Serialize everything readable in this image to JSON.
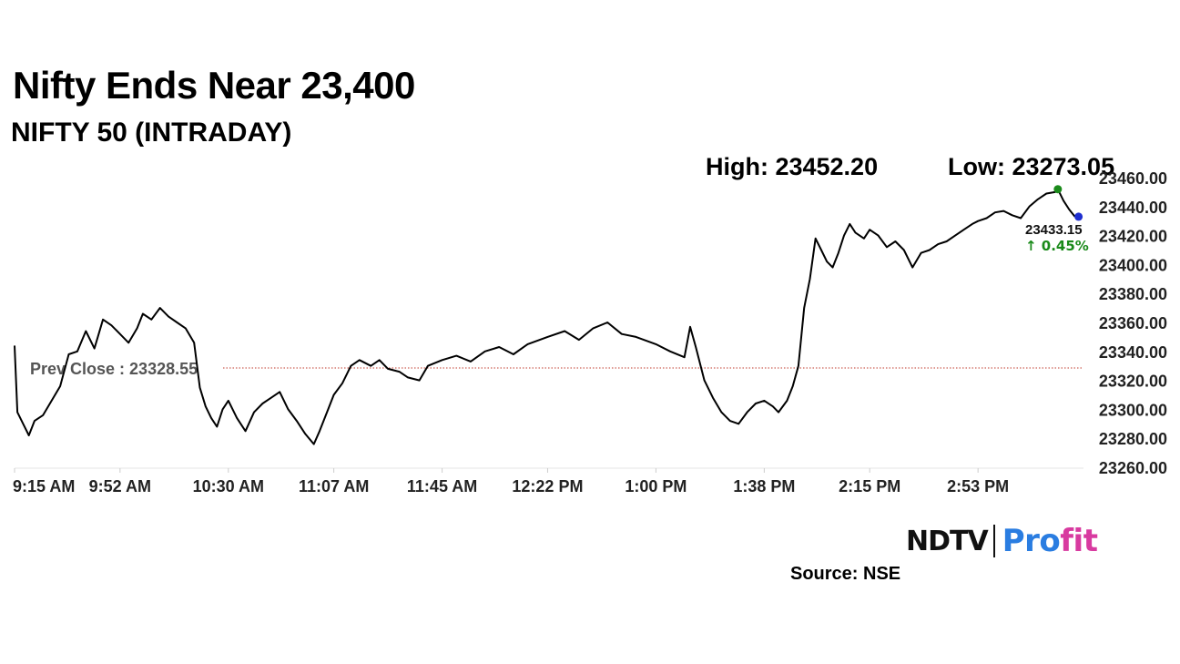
{
  "header": {
    "title": "Nifty Ends Near 23,400",
    "subtitle": "NIFTY 50 (INTRADAY)",
    "high_text": "High: 23452.20",
    "low_text": "Low: 23273.05"
  },
  "footer": {
    "brand_left": "NDTV",
    "brand_right_a": "Pro",
    "brand_right_b": "fit",
    "source": "Source: NSE"
  },
  "chart_data": {
    "type": "line",
    "title": "NIFTY 50 (INTRADAY)",
    "xlabel": "",
    "ylabel": "",
    "x_tick_labels": [
      "9:15 AM",
      "9:52 AM",
      "10:30 AM",
      "11:07 AM",
      "11:45 AM",
      "12:22 PM",
      "1:00 PM",
      "1:38 PM",
      "2:15 PM",
      "2:53 PM"
    ],
    "y_tick_labels": [
      "23260.00",
      "23280.00",
      "23300.00",
      "23320.00",
      "23340.00",
      "23360.00",
      "23380.00",
      "23400.00",
      "23420.00",
      "23440.00",
      "23460.00"
    ],
    "ylim": [
      23260,
      23460
    ],
    "xlim_minutes": [
      0,
      375
    ],
    "grid": false,
    "prev_close": 23328.55,
    "prev_close_label": "Prev Close : 23328.55",
    "high": 23452.2,
    "low": 23273.05,
    "last": 23433.15,
    "last_label": "23433.15",
    "change_label": "↑ 0.45%",
    "colors": {
      "line": "#000000",
      "prev_close": "#c0392b",
      "high_marker": "#1a8a1a",
      "low_marker": "#e02020",
      "last_marker": "#1f2fd0",
      "change": "#1a8a1a"
    },
    "series": [
      {
        "points": [
          [
            "9:15 AM",
            23344
          ],
          [
            "9:16 AM",
            23298
          ],
          [
            "9:18 AM",
            23290
          ],
          [
            "9:20 AM",
            23282
          ],
          [
            "9:22 AM",
            23292
          ],
          [
            "9:25 AM",
            23296
          ],
          [
            "9:28 AM",
            23306
          ],
          [
            "9:31 AM",
            23316
          ],
          [
            "9:34 AM",
            23338
          ],
          [
            "9:37 AM",
            23340
          ],
          [
            "9:40 AM",
            23354
          ],
          [
            "9:43 AM",
            23342
          ],
          [
            "9:46 AM",
            23362
          ],
          [
            "9:49 AM",
            23358
          ],
          [
            "9:52 AM",
            23352
          ],
          [
            "9:55 AM",
            23346
          ],
          [
            "9:58 AM",
            23356
          ],
          [
            "10:00 AM",
            23366
          ],
          [
            "10:03 AM",
            23362
          ],
          [
            "10:06 AM",
            23370
          ],
          [
            "10:09 AM",
            23364
          ],
          [
            "10:12 AM",
            23360
          ],
          [
            "10:15 AM",
            23356
          ],
          [
            "10:18 AM",
            23346
          ],
          [
            "10:20 AM",
            23315
          ],
          [
            "10:22 AM",
            23302
          ],
          [
            "10:24 AM",
            23294
          ],
          [
            "10:26 AM",
            23288
          ],
          [
            "10:28 AM",
            23300
          ],
          [
            "10:30 AM",
            23306
          ],
          [
            "10:33 AM",
            23294
          ],
          [
            "10:36 AM",
            23285
          ],
          [
            "10:39 AM",
            23298
          ],
          [
            "10:42 AM",
            23304
          ],
          [
            "10:45 AM",
            23308
          ],
          [
            "10:48 AM",
            23312
          ],
          [
            "10:51 AM",
            23300
          ],
          [
            "10:54 AM",
            23292
          ],
          [
            "10:57 AM",
            23283
          ],
          [
            "11:00 AM",
            23276
          ],
          [
            "11:02 AM",
            23285
          ],
          [
            "11:05 AM",
            23300
          ],
          [
            "11:07 AM",
            23310
          ],
          [
            "11:10 AM",
            23318
          ],
          [
            "11:13 AM",
            23330
          ],
          [
            "11:16 AM",
            23334
          ],
          [
            "11:20 AM",
            23330
          ],
          [
            "11:23 AM",
            23334
          ],
          [
            "11:26 AM",
            23328
          ],
          [
            "11:30 AM",
            23326
          ],
          [
            "11:33 AM",
            23322
          ],
          [
            "11:37 AM",
            23320
          ],
          [
            "11:40 AM",
            23330
          ],
          [
            "11:45 AM",
            23334
          ],
          [
            "11:50 AM",
            23337
          ],
          [
            "11:55 AM",
            23333
          ],
          [
            "12:00 PM",
            23340
          ],
          [
            "12:05 PM",
            23343
          ],
          [
            "12:10 PM",
            23338
          ],
          [
            "12:15 PM",
            23345
          ],
          [
            "12:22 PM",
            23350
          ],
          [
            "12:28 PM",
            23354
          ],
          [
            "12:33 PM",
            23348
          ],
          [
            "12:38 PM",
            23356
          ],
          [
            "12:43 PM",
            23360
          ],
          [
            "12:48 PM",
            23352
          ],
          [
            "12:53 PM",
            23350
          ],
          [
            "1:00 PM",
            23345
          ],
          [
            "1:05 PM",
            23340
          ],
          [
            "1:10 PM",
            23336
          ],
          [
            "1:12 PM",
            23357
          ],
          [
            "1:14 PM",
            23343
          ],
          [
            "1:17 PM",
            23320
          ],
          [
            "1:20 PM",
            23308
          ],
          [
            "1:23 PM",
            23298
          ],
          [
            "1:26 PM",
            23292
          ],
          [
            "1:29 PM",
            23290
          ],
          [
            "1:32 PM",
            23298
          ],
          [
            "1:35 PM",
            23304
          ],
          [
            "1:38 PM",
            23306
          ],
          [
            "1:41 PM",
            23302
          ],
          [
            "1:43 PM",
            23298
          ],
          [
            "1:46 PM",
            23306
          ],
          [
            "1:48 PM",
            23316
          ],
          [
            "1:50 PM",
            23330
          ],
          [
            "1:52 PM",
            23370
          ],
          [
            "1:54 PM",
            23390
          ],
          [
            "1:56 PM",
            23418
          ],
          [
            "1:58 PM",
            23410
          ],
          [
            "2:00 PM",
            23402
          ],
          [
            "2:02 PM",
            23398
          ],
          [
            "2:04 PM",
            23408
          ],
          [
            "2:06 PM",
            23420
          ],
          [
            "2:08 PM",
            23428
          ],
          [
            "2:10 PM",
            23422
          ],
          [
            "2:13 PM",
            23418
          ],
          [
            "2:15 PM",
            23424
          ],
          [
            "2:18 PM",
            23420
          ],
          [
            "2:21 PM",
            23412
          ],
          [
            "2:24 PM",
            23416
          ],
          [
            "2:27 PM",
            23410
          ],
          [
            "2:30 PM",
            23398
          ],
          [
            "2:33 PM",
            23408
          ],
          [
            "2:36 PM",
            23410
          ],
          [
            "2:39 PM",
            23414
          ],
          [
            "2:42 PM",
            23416
          ],
          [
            "2:45 PM",
            23420
          ],
          [
            "2:48 PM",
            23424
          ],
          [
            "2:51 PM",
            23428
          ],
          [
            "2:53 PM",
            23430
          ],
          [
            "2:56 PM",
            23432
          ],
          [
            "2:59 PM",
            23436
          ],
          [
            "3:02 PM",
            23437
          ],
          [
            "3:05 PM",
            23434
          ],
          [
            "3:08 PM",
            23432
          ],
          [
            "3:11 PM",
            23440
          ],
          [
            "3:14 PM",
            23445
          ],
          [
            "3:17 PM",
            23449
          ],
          [
            "3:20 PM",
            23450
          ],
          [
            "3:21 PM",
            23452
          ],
          [
            "3:23 PM",
            23444
          ],
          [
            "3:25 PM",
            23438
          ],
          [
            "3:27 PM",
            23433
          ]
        ]
      }
    ]
  }
}
